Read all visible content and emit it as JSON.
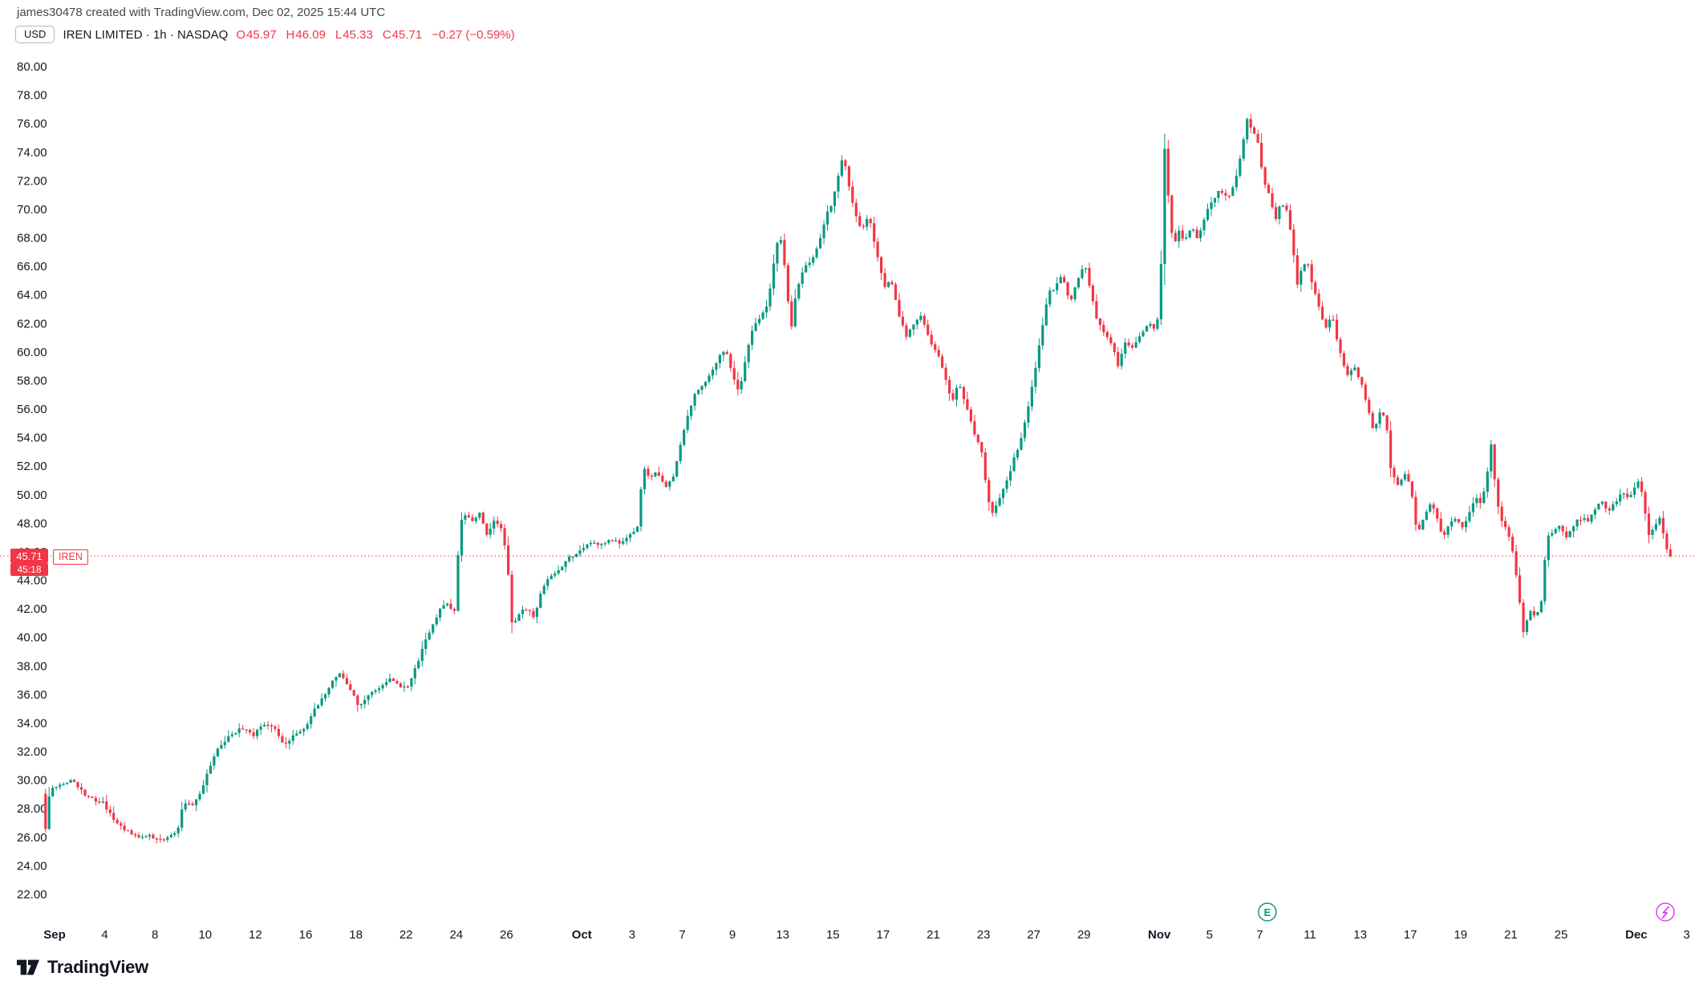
{
  "meta": {
    "attribution": "james30478 created with TradingView.com, Dec 02, 2025 15:44 UTC"
  },
  "header": {
    "currency_button": "USD",
    "symbol_title": "IREN LIMITED · 1h · NASDAQ",
    "ohlc": {
      "open_label": "O",
      "open": "45.97",
      "high_label": "H",
      "high": "46.09",
      "low_label": "L",
      "low": "45.33",
      "close_label": "C",
      "close": "45.71",
      "change": "−0.27 (−0.59%)"
    }
  },
  "price_line": {
    "price": "45.71",
    "countdown": "45:18",
    "symbol_tag": "IREN"
  },
  "footer": {
    "logo_text": "TradingView"
  },
  "markers": {
    "earnings": {
      "label": "E",
      "day": 48.3
    }
  },
  "colors": {
    "up": "#089981",
    "down": "#f23645",
    "text": "#131722",
    "muted": "#787b86",
    "magenta": "#e040fb"
  },
  "chart_data": {
    "type": "candlestick",
    "symbol": "IREN",
    "exchange": "NASDAQ",
    "interval": "1h",
    "currency": "USD",
    "title": "IREN LIMITED · 1h · NASDAQ",
    "last": {
      "open": 45.97,
      "high": 46.09,
      "low": 45.33,
      "close": 45.71,
      "change": -0.27,
      "change_pct": -0.59
    },
    "y_axis": {
      "min": 22,
      "max": 80,
      "step": 2
    },
    "bars_per_day": 7,
    "day_start": -0.43,
    "day_end": 64.43,
    "x_ticks": [
      {
        "label": "Sep",
        "day": 0,
        "major": true
      },
      {
        "label": "4",
        "day": 2
      },
      {
        "label": "8",
        "day": 4
      },
      {
        "label": "10",
        "day": 6
      },
      {
        "label": "12",
        "day": 8
      },
      {
        "label": "16",
        "day": 10
      },
      {
        "label": "18",
        "day": 12
      },
      {
        "label": "22",
        "day": 14
      },
      {
        "label": "24",
        "day": 16
      },
      {
        "label": "26",
        "day": 18
      },
      {
        "label": "Oct",
        "day": 21,
        "major": true
      },
      {
        "label": "3",
        "day": 23
      },
      {
        "label": "7",
        "day": 25
      },
      {
        "label": "9",
        "day": 27
      },
      {
        "label": "13",
        "day": 29
      },
      {
        "label": "15",
        "day": 31
      },
      {
        "label": "17",
        "day": 33
      },
      {
        "label": "21",
        "day": 35
      },
      {
        "label": "23",
        "day": 37
      },
      {
        "label": "27",
        "day": 39
      },
      {
        "label": "29",
        "day": 41
      },
      {
        "label": "Nov",
        "day": 44,
        "major": true
      },
      {
        "label": "5",
        "day": 46
      },
      {
        "label": "7",
        "day": 48
      },
      {
        "label": "11",
        "day": 50
      },
      {
        "label": "13",
        "day": 52
      },
      {
        "label": "17",
        "day": 54
      },
      {
        "label": "19",
        "day": 56
      },
      {
        "label": "21",
        "day": 58
      },
      {
        "label": "25",
        "day": 60
      },
      {
        "label": "Dec",
        "day": 63,
        "major": true
      },
      {
        "label": "3",
        "day": 65
      }
    ],
    "price_path": [
      [
        -0.45,
        29.6
      ],
      [
        -0.32,
        26.0
      ],
      [
        -0.15,
        28.8
      ],
      [
        0.0,
        29.4
      ],
      [
        0.4,
        29.7
      ],
      [
        0.8,
        30.0
      ],
      [
        1.2,
        29.1
      ],
      [
        1.7,
        28.6
      ],
      [
        2.0,
        28.4
      ],
      [
        2.5,
        27.1
      ],
      [
        3.0,
        26.4
      ],
      [
        3.5,
        26.0
      ],
      [
        3.9,
        26.1
      ],
      [
        4.3,
        25.8
      ],
      [
        4.7,
        26.1
      ],
      [
        5.0,
        26.6
      ],
      [
        5.2,
        28.5
      ],
      [
        5.6,
        28.3
      ],
      [
        5.9,
        29.2
      ],
      [
        6.2,
        30.8
      ],
      [
        6.6,
        32.2
      ],
      [
        7.0,
        33.0
      ],
      [
        7.5,
        33.6
      ],
      [
        8.0,
        33.2
      ],
      [
        8.4,
        34.0
      ],
      [
        8.8,
        33.7
      ],
      [
        9.2,
        32.5
      ],
      [
        9.6,
        33.1
      ],
      [
        10.0,
        33.5
      ],
      [
        10.4,
        34.9
      ],
      [
        10.8,
        35.9
      ],
      [
        11.15,
        37.0
      ],
      [
        11.45,
        37.5
      ],
      [
        11.8,
        36.6
      ],
      [
        12.2,
        35.1
      ],
      [
        12.6,
        36.0
      ],
      [
        13.0,
        36.4
      ],
      [
        13.4,
        37.1
      ],
      [
        13.8,
        36.6
      ],
      [
        14.15,
        36.6
      ],
      [
        14.5,
        38.1
      ],
      [
        14.8,
        39.7
      ],
      [
        15.1,
        40.7
      ],
      [
        15.4,
        41.9
      ],
      [
        15.7,
        42.4
      ],
      [
        15.95,
        41.7
      ],
      [
        16.05,
        42.1
      ],
      [
        16.2,
        48.2
      ],
      [
        16.5,
        48.7
      ],
      [
        16.75,
        48.1
      ],
      [
        17.0,
        48.8
      ],
      [
        17.3,
        47.1
      ],
      [
        17.6,
        48.3
      ],
      [
        17.9,
        47.5
      ],
      [
        18.1,
        45.5
      ],
      [
        18.3,
        40.7
      ],
      [
        18.6,
        41.7
      ],
      [
        18.9,
        42.1
      ],
      [
        19.15,
        41.4
      ],
      [
        19.5,
        43.4
      ],
      [
        19.8,
        44.3
      ],
      [
        20.2,
        44.9
      ],
      [
        20.6,
        45.7
      ],
      [
        21.0,
        46.0
      ],
      [
        21.4,
        46.7
      ],
      [
        21.8,
        46.4
      ],
      [
        22.2,
        47.0
      ],
      [
        22.6,
        46.5
      ],
      [
        23.0,
        47.2
      ],
      [
        23.3,
        47.7
      ],
      [
        23.5,
        51.9
      ],
      [
        23.8,
        51.2
      ],
      [
        24.1,
        51.6
      ],
      [
        24.4,
        50.5
      ],
      [
        24.7,
        51.2
      ],
      [
        25.0,
        53.6
      ],
      [
        25.3,
        55.6
      ],
      [
        25.6,
        57.1
      ],
      [
        25.9,
        57.7
      ],
      [
        26.2,
        58.4
      ],
      [
        26.5,
        59.6
      ],
      [
        26.8,
        60.1
      ],
      [
        27.1,
        58.3
      ],
      [
        27.35,
        57.1
      ],
      [
        27.6,
        59.6
      ],
      [
        27.9,
        61.9
      ],
      [
        28.2,
        62.4
      ],
      [
        28.5,
        63.6
      ],
      [
        28.75,
        66.6
      ],
      [
        28.95,
        68.5
      ],
      [
        29.15,
        66.0
      ],
      [
        29.4,
        61.5
      ],
      [
        29.6,
        64.2
      ],
      [
        29.9,
        65.9
      ],
      [
        30.2,
        66.4
      ],
      [
        30.5,
        67.6
      ],
      [
        30.8,
        69.6
      ],
      [
        31.05,
        70.5
      ],
      [
        31.3,
        72.6
      ],
      [
        31.5,
        73.9
      ],
      [
        31.7,
        71.6
      ],
      [
        31.95,
        69.9
      ],
      [
        32.2,
        68.4
      ],
      [
        32.5,
        69.6
      ],
      [
        32.8,
        67.1
      ],
      [
        33.1,
        64.6
      ],
      [
        33.4,
        64.9
      ],
      [
        33.7,
        62.5
      ],
      [
        34.0,
        61.1
      ],
      [
        34.3,
        61.9
      ],
      [
        34.6,
        62.5
      ],
      [
        34.9,
        60.9
      ],
      [
        35.2,
        60.1
      ],
      [
        35.5,
        58.4
      ],
      [
        35.8,
        56.5
      ],
      [
        36.1,
        57.9
      ],
      [
        36.4,
        56.1
      ],
      [
        36.7,
        54.3
      ],
      [
        37.0,
        52.9
      ],
      [
        37.2,
        50.1
      ],
      [
        37.4,
        48.7
      ],
      [
        37.7,
        49.7
      ],
      [
        38.0,
        50.9
      ],
      [
        38.3,
        52.6
      ],
      [
        38.6,
        54.1
      ],
      [
        38.9,
        56.4
      ],
      [
        39.2,
        59.6
      ],
      [
        39.45,
        62.1
      ],
      [
        39.65,
        64.1
      ],
      [
        39.95,
        64.6
      ],
      [
        40.2,
        65.4
      ],
      [
        40.5,
        63.4
      ],
      [
        40.8,
        64.9
      ],
      [
        41.1,
        66.3
      ],
      [
        41.35,
        64.1
      ],
      [
        41.6,
        62.1
      ],
      [
        41.9,
        61.4
      ],
      [
        42.2,
        60.4
      ],
      [
        42.45,
        59.0
      ],
      [
        42.7,
        60.7
      ],
      [
        43.0,
        60.3
      ],
      [
        43.3,
        61.1
      ],
      [
        43.6,
        62.0
      ],
      [
        43.9,
        61.6
      ],
      [
        44.05,
        62.6
      ],
      [
        44.15,
        66.6
      ],
      [
        44.3,
        75.2
      ],
      [
        44.45,
        70.2
      ],
      [
        44.65,
        67.3
      ],
      [
        44.85,
        68.6
      ],
      [
        45.05,
        67.6
      ],
      [
        45.35,
        68.9
      ],
      [
        45.6,
        67.9
      ],
      [
        45.9,
        69.6
      ],
      [
        46.2,
        70.6
      ],
      [
        46.5,
        71.4
      ],
      [
        46.8,
        70.7
      ],
      [
        47.1,
        72.1
      ],
      [
        47.35,
        74.1
      ],
      [
        47.55,
        76.4
      ],
      [
        47.75,
        75.6
      ],
      [
        48.0,
        74.6
      ],
      [
        48.2,
        72.1
      ],
      [
        48.45,
        70.9
      ],
      [
        48.7,
        69.3
      ],
      [
        48.9,
        70.4
      ],
      [
        49.15,
        69.9
      ],
      [
        49.35,
        68.1
      ],
      [
        49.55,
        64.6
      ],
      [
        49.75,
        65.9
      ],
      [
        49.95,
        66.4
      ],
      [
        50.15,
        64.9
      ],
      [
        50.45,
        63.1
      ],
      [
        50.7,
        61.6
      ],
      [
        50.95,
        62.6
      ],
      [
        51.25,
        60.1
      ],
      [
        51.55,
        58.4
      ],
      [
        51.85,
        58.9
      ],
      [
        52.15,
        57.6
      ],
      [
        52.4,
        55.9
      ],
      [
        52.6,
        54.3
      ],
      [
        52.85,
        55.7
      ],
      [
        53.1,
        55.3
      ],
      [
        53.3,
        51.6
      ],
      [
        53.6,
        50.7
      ],
      [
        53.85,
        51.5
      ],
      [
        54.1,
        50.4
      ],
      [
        54.35,
        47.1
      ],
      [
        54.6,
        48.4
      ],
      [
        54.85,
        49.4
      ],
      [
        55.1,
        48.7
      ],
      [
        55.35,
        47.0
      ],
      [
        55.6,
        47.9
      ],
      [
        55.9,
        48.5
      ],
      [
        56.15,
        47.6
      ],
      [
        56.4,
        48.7
      ],
      [
        56.65,
        49.9
      ],
      [
        56.9,
        49.3
      ],
      [
        57.1,
        51.1
      ],
      [
        57.3,
        53.6
      ],
      [
        57.5,
        49.6
      ],
      [
        57.7,
        48.1
      ],
      [
        57.95,
        47.4
      ],
      [
        58.2,
        45.6
      ],
      [
        58.4,
        42.9
      ],
      [
        58.55,
        40.2
      ],
      [
        58.8,
        41.9
      ],
      [
        59.05,
        41.4
      ],
      [
        59.3,
        42.6
      ],
      [
        59.5,
        46.9
      ],
      [
        59.75,
        47.5
      ],
      [
        60.0,
        47.9
      ],
      [
        60.3,
        46.9
      ],
      [
        60.6,
        48.0
      ],
      [
        60.9,
        48.4
      ],
      [
        61.15,
        48.1
      ],
      [
        61.4,
        49.0
      ],
      [
        61.7,
        49.5
      ],
      [
        61.95,
        48.9
      ],
      [
        62.2,
        49.4
      ],
      [
        62.5,
        50.1
      ],
      [
        62.8,
        49.7
      ],
      [
        63.05,
        50.6
      ],
      [
        63.2,
        51.3
      ],
      [
        63.4,
        48.9
      ],
      [
        63.6,
        46.9
      ],
      [
        63.8,
        47.9
      ],
      [
        64.0,
        48.4
      ],
      [
        64.15,
        47.3
      ],
      [
        64.3,
        46.1
      ],
      [
        64.43,
        45.71
      ]
    ]
  }
}
